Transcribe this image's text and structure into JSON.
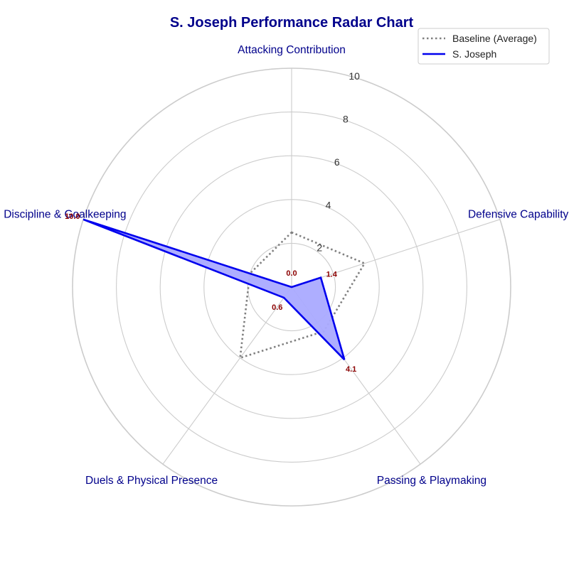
{
  "chart_data": {
    "type": "radar",
    "title": "S. Joseph Performance Radar Chart",
    "categories": [
      "Attacking Contribution",
      "Defensive Capability",
      "Passing & Playmaking",
      "Duels & Physical Presence",
      "Discipline & Goalkeeping"
    ],
    "rlim": [
      0,
      10
    ],
    "rticks": [
      2,
      4,
      6,
      8,
      10
    ],
    "rtick_labels": [
      "2",
      "4",
      "6",
      "8",
      "10"
    ],
    "grid": true,
    "legend_position": "top-right",
    "series": [
      {
        "name": "Baseline (Average)",
        "values": [
          2.5,
          3.5,
          2.5,
          4.0,
          2.0
        ],
        "style": "dotted",
        "color": "#808080",
        "fill": false
      },
      {
        "name": "S. Joseph",
        "values": [
          0.0,
          1.4,
          4.1,
          0.6,
          10.0
        ],
        "data_labels": [
          "0.0",
          "1.4",
          "4.1",
          "0.6",
          "10.0"
        ],
        "style": "solid",
        "color": "#0000ee",
        "fill": true,
        "fill_color": "#aaaaff"
      }
    ]
  },
  "colors": {
    "title": "#00008b",
    "axis_label": "#00008b",
    "data_label": "#8b0000",
    "tick_label": "#333333",
    "grid": "#cccccc",
    "legend_border": "#cccccc",
    "legend_text": "#222222"
  }
}
